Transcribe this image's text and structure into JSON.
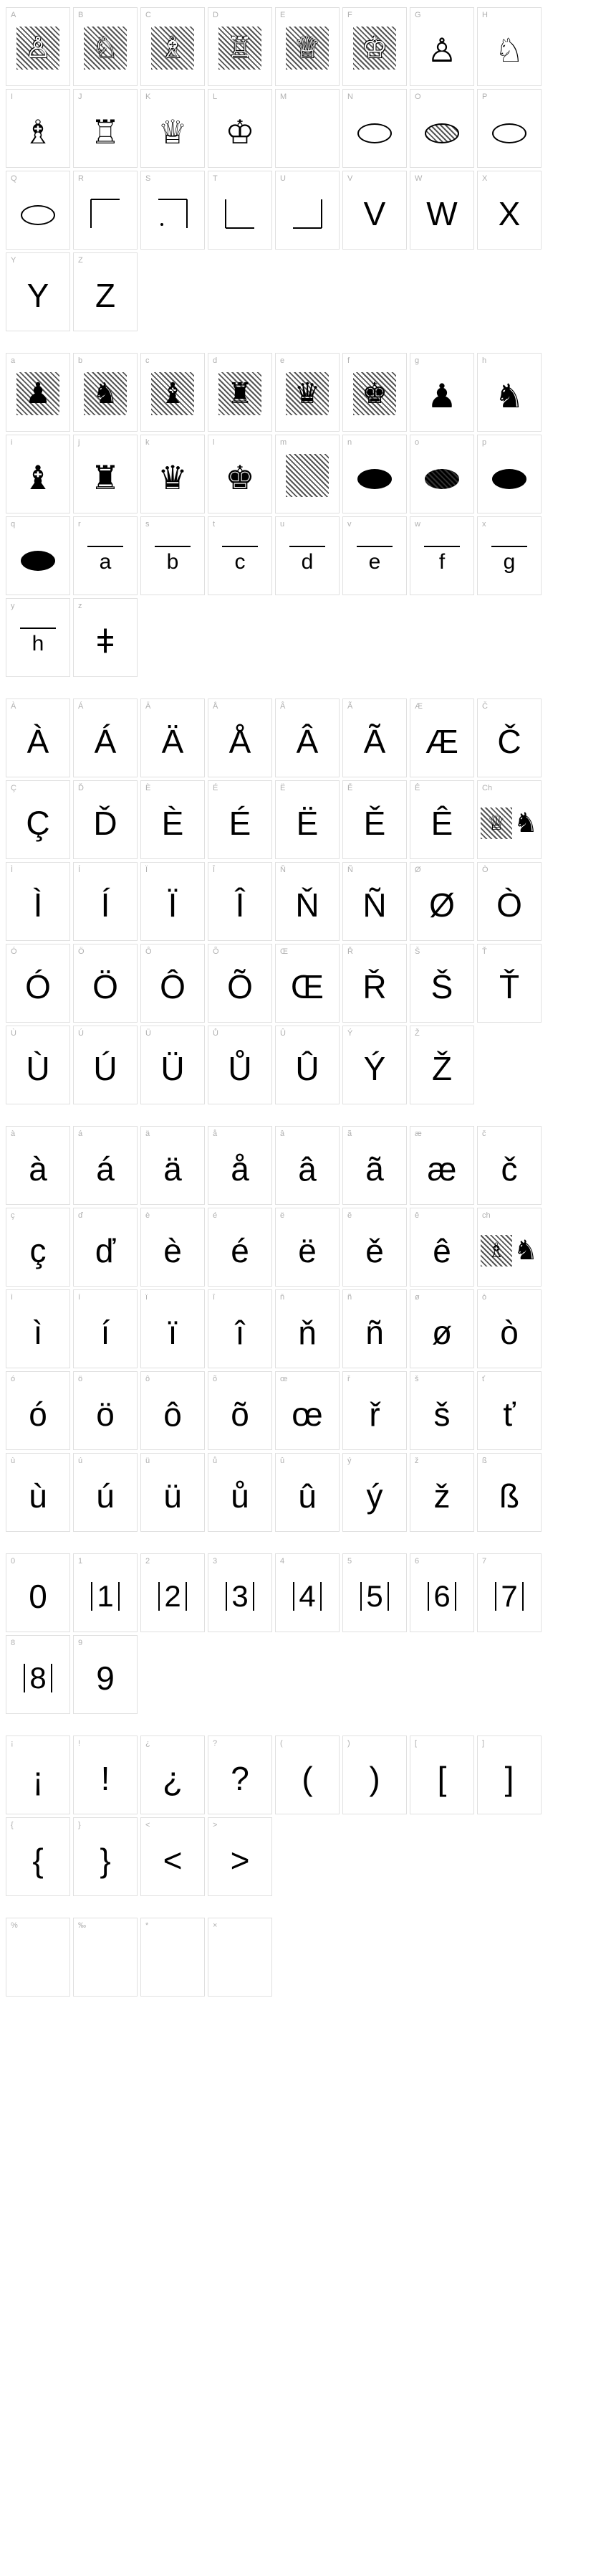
{
  "section1": {
    "comment": "Uppercase A-Z with chess piece glyphs (white pieces on hatched bg, then outline pieces, discs, corners, then letters V-Z)",
    "cells": [
      {
        "label": "A",
        "glyph": "♙",
        "hatched": true,
        "white": true
      },
      {
        "label": "B",
        "glyph": "♘",
        "hatched": true,
        "white": true
      },
      {
        "label": "C",
        "glyph": "♗",
        "hatched": true,
        "white": true
      },
      {
        "label": "D",
        "glyph": "♖",
        "hatched": true,
        "white": true
      },
      {
        "label": "E",
        "glyph": "♕",
        "hatched": true,
        "white": true
      },
      {
        "label": "F",
        "glyph": "♔",
        "hatched": true,
        "white": true
      },
      {
        "label": "G",
        "glyph": "♙",
        "outline": true
      },
      {
        "label": "H",
        "glyph": "♘",
        "outline": true
      },
      {
        "label": "I",
        "glyph": "♗",
        "outline": true
      },
      {
        "label": "J",
        "glyph": "♖",
        "outline": true
      },
      {
        "label": "K",
        "glyph": "♕",
        "outline": true
      },
      {
        "label": "L",
        "glyph": "♔",
        "outline": true
      },
      {
        "label": "M",
        "glyph": "",
        "empty": true
      },
      {
        "label": "N",
        "glyph": "",
        "disc": "outline"
      },
      {
        "label": "O",
        "glyph": "",
        "disc": "hatched"
      },
      {
        "label": "P",
        "glyph": "",
        "disc": "outline"
      },
      {
        "label": "Q",
        "glyph": "",
        "disc": "outline"
      },
      {
        "label": "R",
        "glyph": "",
        "corner": "tl"
      },
      {
        "label": "S",
        "glyph": "",
        "corner": "tr-dot"
      },
      {
        "label": "T",
        "glyph": "",
        "corner": "bl"
      },
      {
        "label": "U",
        "glyph": "",
        "corner": "br"
      },
      {
        "label": "V",
        "glyph": "V",
        "text": true
      },
      {
        "label": "W",
        "glyph": "W",
        "text": true
      },
      {
        "label": "X",
        "glyph": "X",
        "text": true
      },
      {
        "label": "Y",
        "glyph": "Y",
        "text": true
      },
      {
        "label": "Z",
        "glyph": "Z",
        "text": true
      }
    ]
  },
  "section2": {
    "comment": "Lowercase a-z with chess piece glyphs (black pieces)",
    "cells": [
      {
        "label": "a",
        "glyph": "♟",
        "hatched": true
      },
      {
        "label": "b",
        "glyph": "♞",
        "hatched": true
      },
      {
        "label": "c",
        "glyph": "♝",
        "hatched": true
      },
      {
        "label": "d",
        "glyph": "♜",
        "hatched": true
      },
      {
        "label": "e",
        "glyph": "♛",
        "hatched": true
      },
      {
        "label": "f",
        "glyph": "♚",
        "hatched": true
      },
      {
        "label": "g",
        "glyph": "♟",
        "solid": true
      },
      {
        "label": "h",
        "glyph": "♞",
        "solid": true
      },
      {
        "label": "i",
        "glyph": "♝",
        "solid": true
      },
      {
        "label": "j",
        "glyph": "♜",
        "solid": true
      },
      {
        "label": "k",
        "glyph": "♛",
        "solid": true
      },
      {
        "label": "l",
        "glyph": "♚",
        "solid": true
      },
      {
        "label": "m",
        "glyph": "",
        "hatched": true,
        "empty": true
      },
      {
        "label": "n",
        "glyph": "",
        "disc": "black"
      },
      {
        "label": "o",
        "glyph": "",
        "disc": "black-hatched"
      },
      {
        "label": "p",
        "glyph": "",
        "disc": "black"
      },
      {
        "label": "q",
        "glyph": "",
        "disc": "black"
      },
      {
        "label": "r",
        "glyph": "a",
        "underline": true
      },
      {
        "label": "s",
        "glyph": "b",
        "underline": true
      },
      {
        "label": "t",
        "glyph": "c",
        "underline": true
      },
      {
        "label": "u",
        "glyph": "d",
        "underline": true
      },
      {
        "label": "v",
        "glyph": "e",
        "underline": true
      },
      {
        "label": "w",
        "glyph": "f",
        "underline": true
      },
      {
        "label": "x",
        "glyph": "g",
        "underline": true
      },
      {
        "label": "y",
        "glyph": "h",
        "underline": true
      },
      {
        "label": "z",
        "glyph": "ǂ",
        "text": true
      }
    ]
  },
  "section3": {
    "comment": "Uppercase accented",
    "cells": [
      {
        "label": "À",
        "glyph": "À"
      },
      {
        "label": "Á",
        "glyph": "Á"
      },
      {
        "label": "Ä",
        "glyph": "Ä"
      },
      {
        "label": "Å",
        "glyph": "Å"
      },
      {
        "label": "Â",
        "glyph": "Â"
      },
      {
        "label": "Ã",
        "glyph": "Ã"
      },
      {
        "label": "Æ",
        "glyph": "Æ"
      },
      {
        "label": "Č",
        "glyph": "Č"
      },
      {
        "label": "Ç",
        "glyph": "Ç"
      },
      {
        "label": "Ď",
        "glyph": "Ď"
      },
      {
        "label": "È",
        "glyph": "È"
      },
      {
        "label": "É",
        "glyph": "É"
      },
      {
        "label": "Ë",
        "glyph": "Ë"
      },
      {
        "label": "Ě",
        "glyph": "Ě"
      },
      {
        "label": "Ê",
        "glyph": "Ê"
      },
      {
        "label": "Ch",
        "glyph": "♕♞",
        "chess_pair": true
      },
      {
        "label": "Ì",
        "glyph": "Ì"
      },
      {
        "label": "Í",
        "glyph": "Í"
      },
      {
        "label": "Ï",
        "glyph": "Ï"
      },
      {
        "label": "Î",
        "glyph": "Î"
      },
      {
        "label": "Ň",
        "glyph": "Ň"
      },
      {
        "label": "Ñ",
        "glyph": "Ñ"
      },
      {
        "label": "Ø",
        "glyph": "Ø"
      },
      {
        "label": "Ò",
        "glyph": "Ò"
      },
      {
        "label": "Ó",
        "glyph": "Ó"
      },
      {
        "label": "Ö",
        "glyph": "Ö"
      },
      {
        "label": "Ô",
        "glyph": "Ô"
      },
      {
        "label": "Õ",
        "glyph": "Õ"
      },
      {
        "label": "Œ",
        "glyph": "Œ"
      },
      {
        "label": "Ř",
        "glyph": "Ř"
      },
      {
        "label": "Š",
        "glyph": "Š"
      },
      {
        "label": "Ť",
        "glyph": "Ť"
      },
      {
        "label": "Ù",
        "glyph": "Ù"
      },
      {
        "label": "Ú",
        "glyph": "Ú"
      },
      {
        "label": "Ü",
        "glyph": "Ü"
      },
      {
        "label": "Ů",
        "glyph": "Ů"
      },
      {
        "label": "Û",
        "glyph": "Û"
      },
      {
        "label": "Ý",
        "glyph": "Ý"
      },
      {
        "label": "Ž",
        "glyph": "Ž"
      }
    ]
  },
  "section4": {
    "comment": "Lowercase accented",
    "cells": [
      {
        "label": "à",
        "glyph": "à"
      },
      {
        "label": "á",
        "glyph": "á"
      },
      {
        "label": "ä",
        "glyph": "ä"
      },
      {
        "label": "å",
        "glyph": "å"
      },
      {
        "label": "â",
        "glyph": "â"
      },
      {
        "label": "ã",
        "glyph": "ã"
      },
      {
        "label": "æ",
        "glyph": "æ"
      },
      {
        "label": "č",
        "glyph": "č"
      },
      {
        "label": "ç",
        "glyph": "ç"
      },
      {
        "label": "ď",
        "glyph": "ď"
      },
      {
        "label": "è",
        "glyph": "è"
      },
      {
        "label": "é",
        "glyph": "é"
      },
      {
        "label": "ë",
        "glyph": "ë"
      },
      {
        "label": "ě",
        "glyph": "ě"
      },
      {
        "label": "ê",
        "glyph": "ê"
      },
      {
        "label": "ch",
        "glyph": "♗♞",
        "chess_pair": true
      },
      {
        "label": "ì",
        "glyph": "ì"
      },
      {
        "label": "í",
        "glyph": "í"
      },
      {
        "label": "ï",
        "glyph": "ï"
      },
      {
        "label": "î",
        "glyph": "î"
      },
      {
        "label": "ň",
        "glyph": "ň"
      },
      {
        "label": "ñ",
        "glyph": "ñ"
      },
      {
        "label": "ø",
        "glyph": "ø"
      },
      {
        "label": "ò",
        "glyph": "ò"
      },
      {
        "label": "ó",
        "glyph": "ó"
      },
      {
        "label": "ö",
        "glyph": "ö"
      },
      {
        "label": "ô",
        "glyph": "ô"
      },
      {
        "label": "õ",
        "glyph": "õ"
      },
      {
        "label": "œ",
        "glyph": "œ"
      },
      {
        "label": "ř",
        "glyph": "ř"
      },
      {
        "label": "š",
        "glyph": "š"
      },
      {
        "label": "ť",
        "glyph": "ť"
      },
      {
        "label": "ù",
        "glyph": "ù"
      },
      {
        "label": "ú",
        "glyph": "ú"
      },
      {
        "label": "ü",
        "glyph": "ü"
      },
      {
        "label": "ů",
        "glyph": "ů"
      },
      {
        "label": "û",
        "glyph": "û"
      },
      {
        "label": "ý",
        "glyph": "ý"
      },
      {
        "label": "ž",
        "glyph": "ž"
      },
      {
        "label": "ß",
        "glyph": "ß"
      }
    ]
  },
  "section5": {
    "comment": "Digits 0-9 with bars",
    "cells": [
      {
        "label": "0",
        "glyph": "0",
        "bars": false
      },
      {
        "label": "1",
        "glyph": "1",
        "bars": true
      },
      {
        "label": "2",
        "glyph": "2",
        "bars": true
      },
      {
        "label": "3",
        "glyph": "3",
        "bars": true
      },
      {
        "label": "4",
        "glyph": "4",
        "bars": true
      },
      {
        "label": "5",
        "glyph": "5",
        "bars": true
      },
      {
        "label": "6",
        "glyph": "6",
        "bars": true
      },
      {
        "label": "7",
        "glyph": "7",
        "bars": true
      },
      {
        "label": "8",
        "glyph": "8",
        "bars": true
      },
      {
        "label": "9",
        "glyph": "9",
        "bars": false
      }
    ]
  },
  "section6": {
    "comment": "Punctuation",
    "cells": [
      {
        "label": "¡",
        "glyph": "¡"
      },
      {
        "label": "!",
        "glyph": "!"
      },
      {
        "label": "¿",
        "glyph": "¿"
      },
      {
        "label": "?",
        "glyph": "?"
      },
      {
        "label": "(",
        "glyph": "("
      },
      {
        "label": ")",
        "glyph": ")"
      },
      {
        "label": "[",
        "glyph": "["
      },
      {
        "label": "]",
        "glyph": "]"
      },
      {
        "label": "{",
        "glyph": "{"
      },
      {
        "label": "}",
        "glyph": "}"
      },
      {
        "label": "<",
        "glyph": "<"
      },
      {
        "label": ">",
        "glyph": ">"
      }
    ]
  },
  "section7": {
    "comment": "Bottom row (cut off)",
    "cells": [
      {
        "label": "%",
        "glyph": ""
      },
      {
        "label": "‰",
        "glyph": ""
      },
      {
        "label": "*",
        "glyph": ""
      },
      {
        "label": "×",
        "glyph": ""
      }
    ]
  },
  "colors": {
    "background": "#ffffff",
    "border": "#e0e0e0",
    "label": "#b0b0b0",
    "glyph": "#000000",
    "hatch_dark": "#555555"
  }
}
